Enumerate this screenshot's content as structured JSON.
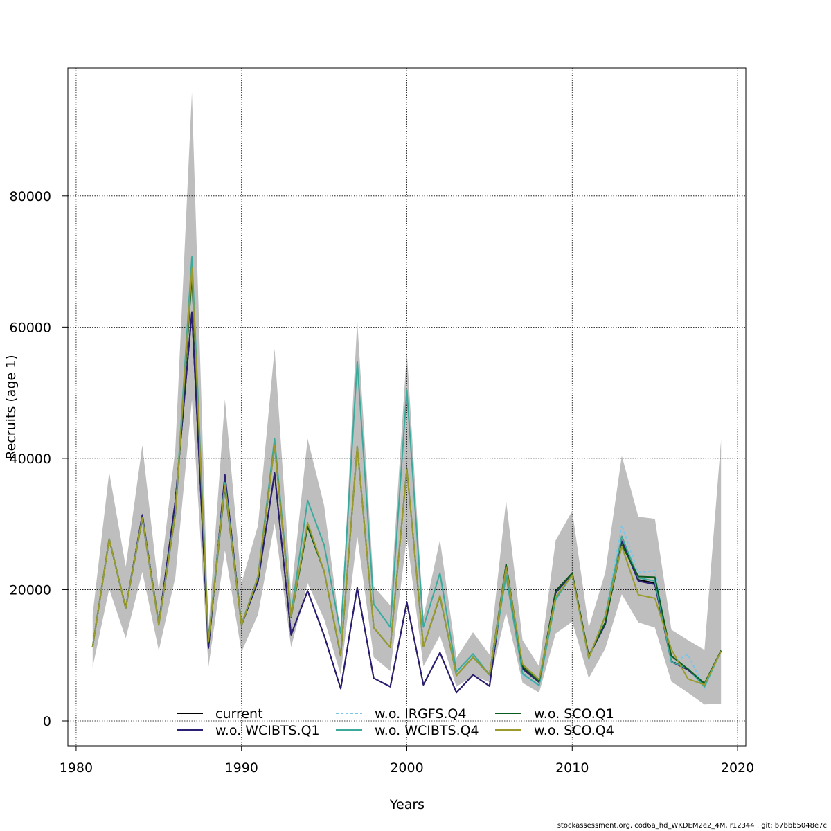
{
  "footer_text": "stockassessment.org, cod6a_hd_WKDEM2e2_4M, r12344 , git: b7bbb5048e7c",
  "chart_data": {
    "type": "line",
    "xlabel": "Years",
    "ylabel": "Recruits (age 1)",
    "xlim": [
      1979.5,
      2020.5
    ],
    "ylim": [
      -3800,
      99500
    ],
    "xticks": [
      1980,
      1990,
      2000,
      2010,
      2020
    ],
    "yticks": [
      0,
      20000,
      40000,
      60000,
      80000
    ],
    "x_tick_labels": [
      "1980",
      "1990",
      "2000",
      "2010",
      "2020"
    ],
    "y_tick_labels": [
      "0",
      "20000",
      "40000",
      "60000",
      "80000"
    ],
    "grid": true,
    "legend_position": "bottom",
    "band_color": "#bebebe",
    "x": [
      1981,
      1982,
      1983,
      1984,
      1985,
      1986,
      1987,
      1988,
      1989,
      1990,
      1991,
      1992,
      1993,
      1994,
      1995,
      1996,
      1997,
      1998,
      1999,
      2000,
      2001,
      2002,
      2003,
      2004,
      2005,
      2006,
      2007,
      2008,
      2009,
      2010,
      2011,
      2012,
      2013,
      2014,
      2015,
      2016,
      2017,
      2018,
      2019
    ],
    "confidence_band": {
      "upper": [
        16200,
        37900,
        23500,
        42000,
        19800,
        41500,
        95800,
        14000,
        49000,
        21000,
        29800,
        56700,
        19200,
        43000,
        32800,
        13200,
        61000,
        20500,
        17600,
        56200,
        15800,
        27600,
        9600,
        13500,
        10100,
        33600,
        12300,
        8300,
        27500,
        32000,
        14200,
        22600,
        40400,
        31100,
        30800,
        13900,
        12300,
        10800,
        42800
      ],
      "lower": [
        8200,
        20100,
        12600,
        22700,
        10700,
        21900,
        48900,
        8200,
        26000,
        10500,
        16200,
        30100,
        11200,
        21000,
        15500,
        7000,
        28200,
        9700,
        7600,
        28000,
        8300,
        13000,
        5200,
        6900,
        5900,
        16500,
        5800,
        4300,
        13300,
        15100,
        6500,
        11000,
        19300,
        15000,
        14200,
        6000,
        4300,
        2500,
        2600
      ]
    },
    "series": [
      {
        "name": "current",
        "color": "#000000",
        "dash": "",
        "values": [
          11300,
          27700,
          17200,
          31200,
          14700,
          33500,
          62300,
          11100,
          37300,
          14600,
          21300,
          37700,
          13100,
          19800,
          13000,
          4900,
          20300,
          6500,
          5200,
          18000,
          5500,
          10400,
          4300,
          7000,
          5300,
          23800,
          8000,
          5900,
          19800,
          22500,
          9900,
          14800,
          28100,
          21500,
          21000,
          9100,
          7900,
          5600,
          10700
        ]
      },
      {
        "name": "w.o. WCIBTS.Q1",
        "color": "#2b1e75",
        "dash": "",
        "values": [
          11300,
          27700,
          17200,
          31400,
          14700,
          33500,
          62300,
          11100,
          37500,
          14600,
          21300,
          37800,
          13100,
          19800,
          13000,
          4900,
          20300,
          6500,
          5200,
          18100,
          5500,
          10400,
          4300,
          7000,
          5300,
          23400,
          7900,
          5900,
          19500,
          22400,
          9800,
          14700,
          27400,
          21300,
          20800,
          9000,
          7800,
          5500,
          10600
        ]
      },
      {
        "name": "w.o. IRGFS.Q4",
        "color": "#79c6e8",
        "dash": "4,3",
        "values": [
          11300,
          27700,
          17200,
          31000,
          14700,
          31800,
          70500,
          12300,
          36300,
          14700,
          22000,
          42900,
          16200,
          33500,
          26800,
          13300,
          54700,
          17700,
          14200,
          50300,
          14200,
          22500,
          7400,
          10100,
          7000,
          22100,
          7000,
          5300,
          18400,
          22200,
          9400,
          16100,
          29800,
          22600,
          22900,
          8800,
          10100,
          5000,
          10700
        ]
      },
      {
        "name": "w.o. WCIBTS.Q4",
        "color": "#3caa9a",
        "dash": "",
        "values": [
          11300,
          27700,
          17200,
          31000,
          14700,
          31800,
          70700,
          12300,
          36300,
          14700,
          22000,
          43000,
          16200,
          33600,
          26800,
          13300,
          54700,
          17800,
          14300,
          50400,
          14300,
          22500,
          7500,
          10200,
          7000,
          22100,
          7200,
          5400,
          18500,
          22300,
          9500,
          16000,
          28100,
          21800,
          21300,
          9000,
          8000,
          5200,
          10700
        ]
      },
      {
        "name": "w.o. SCO.Q1",
        "color": "#0b5a1e",
        "dash": "",
        "values": [
          11300,
          27700,
          17200,
          30800,
          14600,
          31500,
          67800,
          12000,
          35600,
          14600,
          21800,
          42000,
          15800,
          29600,
          22800,
          9900,
          41800,
          14200,
          11200,
          38400,
          11300,
          19000,
          6900,
          9700,
          7000,
          23800,
          8300,
          6000,
          19700,
          22500,
          9800,
          15000,
          26800,
          22000,
          21900,
          9900,
          7900,
          5700,
          10700
        ]
      },
      {
        "name": "w.o. SCO.Q4",
        "color": "#9a9b2c",
        "dash": "",
        "values": [
          11300,
          27700,
          17200,
          30900,
          14600,
          31600,
          69000,
          12100,
          35900,
          14600,
          21900,
          42000,
          15900,
          30200,
          22800,
          10000,
          41800,
          14200,
          11200,
          38300,
          11300,
          19100,
          6900,
          9700,
          7000,
          23400,
          8600,
          6300,
          18900,
          22200,
          9600,
          15900,
          26600,
          19200,
          18700,
          10900,
          6400,
          5500,
          10600
        ]
      }
    ]
  }
}
